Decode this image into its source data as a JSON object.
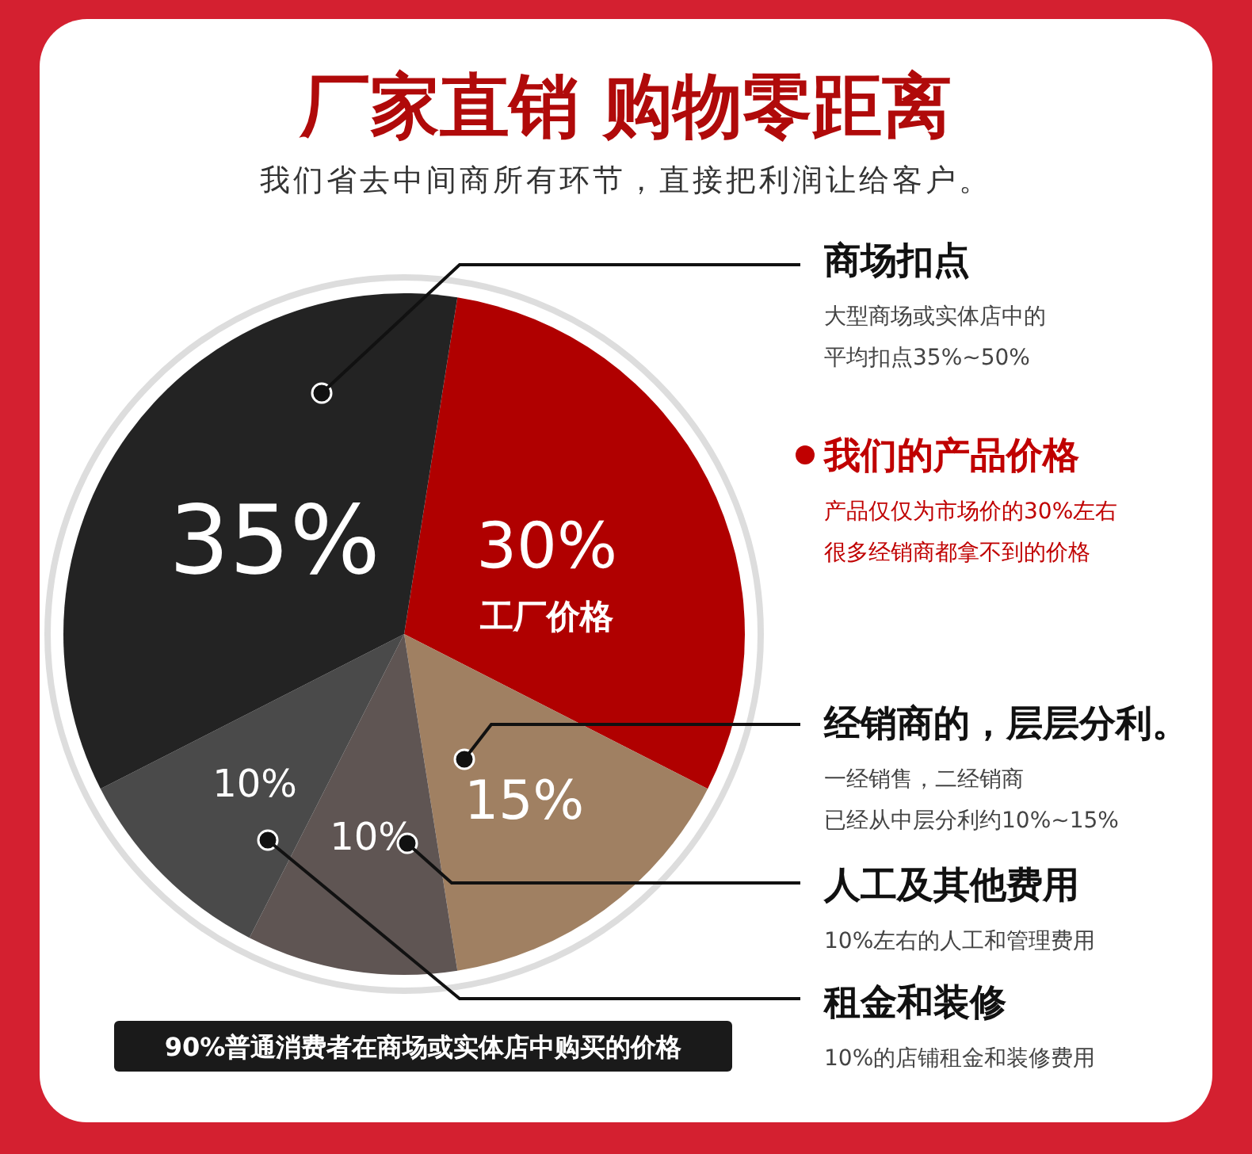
{
  "chart_data": {
    "type": "pie",
    "title": "厂家直销 购物零距离",
    "subtitle": "我们省去中间商所有环节，直接把利润让给客户。",
    "categories": [
      "我们的产品价格",
      "经销商的，层层分利。",
      "人工及其他费用",
      "租金和装修",
      "商场扣点"
    ],
    "values": [
      30,
      15,
      10,
      10,
      35
    ],
    "value_labels": [
      "30%",
      "15%",
      "10%",
      "10%",
      "35%"
    ],
    "colors": [
      "#b00000",
      "#a08062",
      "#5f5553",
      "#4a4a4a",
      "#232323"
    ],
    "annotations": [
      "工厂价格",
      "产品仅仅为市场价的30%左右",
      "很多经销商都拿不到的价格",
      "一经销售，二经销商",
      "已经从中层分利约10%~15%",
      "10%左右的人工和管理费用",
      "10%的店铺租金和装修费用",
      "大型商场或实体店中的",
      "平均扣点35%~50%",
      "90%普通消费者在商场或实体店中购买的价格"
    ]
  }
}
